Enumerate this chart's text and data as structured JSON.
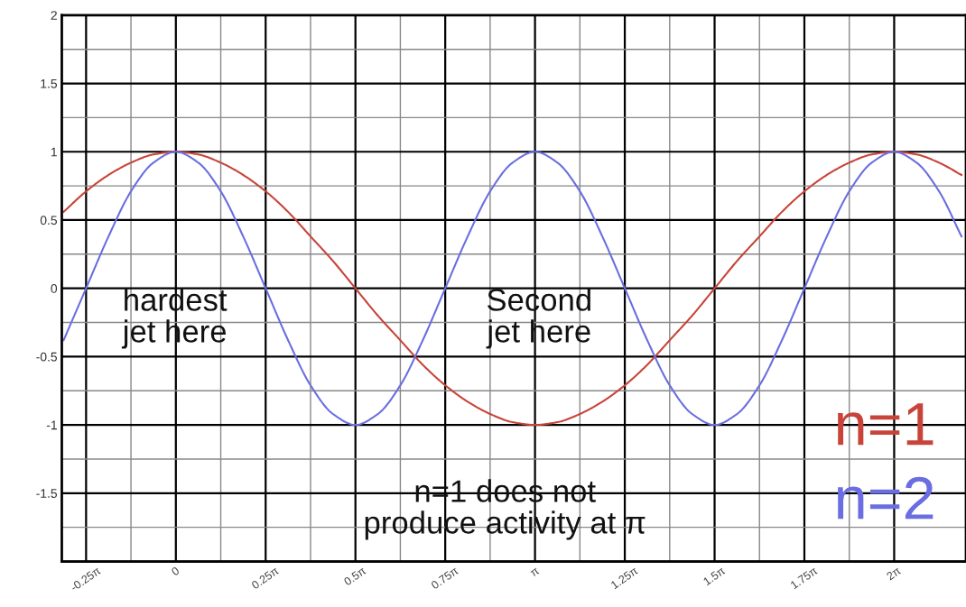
{
  "chart_data": {
    "type": "line",
    "x": [
      -0.9817,
      -0.7854,
      -0.589,
      -0.3927,
      -0.1963,
      0,
      0.1963,
      0.3927,
      0.589,
      0.7854,
      0.9817,
      1.1781,
      1.3744,
      1.5708,
      1.7671,
      1.9635,
      2.1598,
      2.3562,
      2.5525,
      2.7489,
      2.9452,
      3.1416,
      3.3379,
      3.5343,
      3.7306,
      3.927,
      4.1233,
      4.3197,
      4.516,
      4.7124,
      4.9087,
      5.1051,
      5.3014,
      5.4978,
      5.6941,
      5.8905,
      6.0868,
      6.2832,
      6.4795,
      6.6759,
      6.8722
    ],
    "series": [
      {
        "name": "n=1",
        "color": "#c8443a",
        "values": [
          0.56,
          0.71,
          0.83,
          0.92,
          0.98,
          1,
          0.98,
          0.92,
          0.83,
          0.71,
          0.56,
          0.38,
          0.2,
          0,
          -0.2,
          -0.38,
          -0.56,
          -0.71,
          -0.83,
          -0.92,
          -0.98,
          -1,
          -0.98,
          -0.92,
          -0.83,
          -0.71,
          -0.56,
          -0.38,
          -0.2,
          0,
          0.2,
          0.38,
          0.56,
          0.71,
          0.83,
          0.92,
          0.98,
          1,
          0.98,
          0.92,
          0.83
        ]
      },
      {
        "name": "n=2",
        "color": "#6a6ee0",
        "values": [
          -0.38,
          0,
          0.38,
          0.71,
          0.92,
          1,
          0.92,
          0.71,
          0.38,
          0,
          -0.38,
          -0.71,
          -0.92,
          -1,
          -0.92,
          -0.71,
          -0.38,
          0,
          0.38,
          0.71,
          0.92,
          1,
          0.92,
          0.71,
          0.38,
          0,
          -0.38,
          -0.71,
          -0.92,
          -1,
          -0.92,
          -0.71,
          -0.38,
          0,
          0.38,
          0.71,
          0.92,
          1,
          0.92,
          0.71,
          0.38
        ]
      }
    ],
    "xlim": [
      -0.9975,
      6.9115
    ],
    "xticks": [
      {
        "value": -0.7854,
        "label": "-0.25π"
      },
      {
        "value": 0,
        "label": "0"
      },
      {
        "value": 0.7854,
        "label": "0.25π"
      },
      {
        "value": 1.5708,
        "label": "0.5π"
      },
      {
        "value": 2.3562,
        "label": "0.75π"
      },
      {
        "value": 3.1416,
        "label": "π"
      },
      {
        "value": 3.927,
        "label": "1.25π"
      },
      {
        "value": 4.7124,
        "label": "1.5π"
      },
      {
        "value": 5.4978,
        "label": "1.75π"
      },
      {
        "value": 6.2832,
        "label": "2π"
      }
    ],
    "ylim": [
      -2,
      2
    ],
    "yticks": [
      {
        "value": -2,
        "label": null
      },
      -1.5,
      -1,
      -0.5,
      0,
      0.5,
      1,
      1.5,
      2
    ],
    "grid": true,
    "legend": "bottom right",
    "annotations": [
      "hardest\njet here",
      "Second\njet here",
      "n=1 does not\nproduce activity at π"
    ]
  }
}
